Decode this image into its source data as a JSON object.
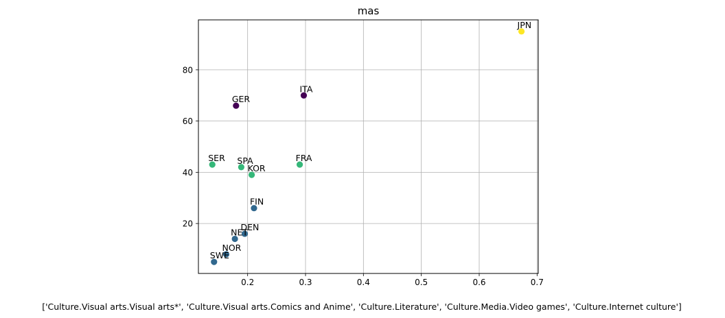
{
  "chart_data": {
    "type": "scatter",
    "title": "mas",
    "xlabel": "['Culture.Visual arts.Visual arts*', 'Culture.Visual arts.Comics and Anime', 'Culture.Literature', 'Culture.Media.Video games', 'Culture.Internet culture']",
    "ylabel": "",
    "xlim": [
      0.115,
      0.702
    ],
    "ylim": [
      0.5,
      99.5
    ],
    "xticks": [
      0.2,
      0.3,
      0.4,
      0.5,
      0.6,
      0.7
    ],
    "xtick_labels": [
      "0.2",
      "0.3",
      "0.4",
      "0.5",
      "0.6",
      "0.7"
    ],
    "yticks": [
      20,
      40,
      60,
      80
    ],
    "ytick_labels": [
      "20",
      "40",
      "60",
      "80"
    ],
    "grid": true,
    "points": [
      {
        "label": "JPN",
        "x": 0.673,
        "y": 95,
        "color": "#fde725"
      },
      {
        "label": "ITA",
        "x": 0.297,
        "y": 70,
        "color": "#440154"
      },
      {
        "label": "GER",
        "x": 0.18,
        "y": 66,
        "color": "#440154"
      },
      {
        "label": "SER",
        "x": 0.139,
        "y": 43,
        "color": "#35b779"
      },
      {
        "label": "FRA",
        "x": 0.29,
        "y": 43,
        "color": "#35b779"
      },
      {
        "label": "SPA",
        "x": 0.189,
        "y": 42,
        "color": "#35b779"
      },
      {
        "label": "KOR",
        "x": 0.207,
        "y": 39,
        "color": "#35b779"
      },
      {
        "label": "FIN",
        "x": 0.211,
        "y": 26,
        "color": "#31688e"
      },
      {
        "label": "DEN",
        "x": 0.195,
        "y": 16,
        "color": "#31688e"
      },
      {
        "label": "NET",
        "x": 0.178,
        "y": 14,
        "color": "#31688e"
      },
      {
        "label": "NOR",
        "x": 0.163,
        "y": 8,
        "color": "#31688e"
      },
      {
        "label": "SWE",
        "x": 0.142,
        "y": 5,
        "color": "#31688e"
      }
    ]
  }
}
